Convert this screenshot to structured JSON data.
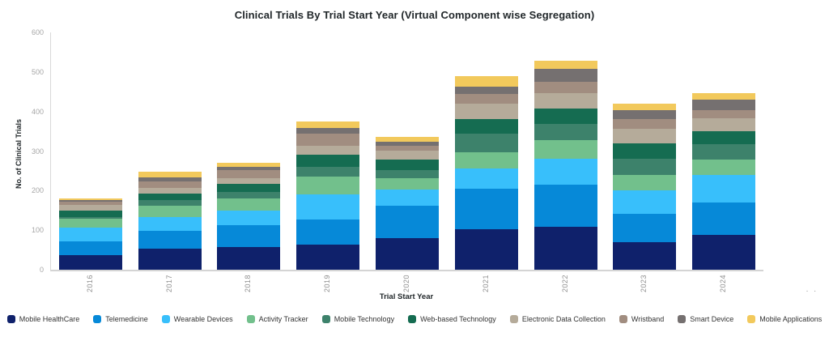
{
  "title": "Clinical Trials By Trial Start Year (Virtual Component wise Segregation)",
  "x_axis": {
    "title": "Trial Start Year"
  },
  "y_axis": {
    "title": "No. of Clinical Trials",
    "ticks": [
      0,
      100,
      200,
      300,
      400,
      500,
      600
    ]
  },
  "overflow_indicator": ". .",
  "chart_data": {
    "type": "bar",
    "stacked": true,
    "title": "Clinical Trials By Trial Start Year (Virtual Component wise Segregation)",
    "xlabel": "Trial Start Year",
    "ylabel": "No. of Clinical Trials",
    "ylim": [
      0,
      600
    ],
    "grid": false,
    "legend_position": "bottom",
    "categories": [
      "2016",
      "2017",
      "2018",
      "2019",
      "2020",
      "2021",
      "2022",
      "2023",
      "2024"
    ],
    "series": [
      {
        "name": "Mobile HealthCare",
        "color": "#0f216b",
        "values": [
          37,
          53,
          57,
          63,
          79,
          103,
          109,
          70,
          89
        ]
      },
      {
        "name": "Telemedicine",
        "color": "#0689d8",
        "values": [
          34,
          46,
          56,
          64,
          82,
          102,
          107,
          72,
          82
        ]
      },
      {
        "name": "Wearable Devices",
        "color": "#38bffb",
        "values": [
          36,
          35,
          36,
          64,
          42,
          51,
          65,
          59,
          68
        ]
      },
      {
        "name": "Activity Tracker",
        "color": "#72c08c",
        "values": [
          22,
          27,
          31,
          44,
          29,
          40,
          46,
          39,
          39
        ]
      },
      {
        "name": "Mobile Technology",
        "color": "#3d826b",
        "values": [
          5,
          16,
          17,
          25,
          19,
          48,
          42,
          41,
          40
        ]
      },
      {
        "name": "Web-based Technology",
        "color": "#156c51",
        "values": [
          15,
          16,
          20,
          30,
          27,
          38,
          38,
          38,
          33
        ]
      },
      {
        "name": "Electronic Data Collection",
        "color": "#b5ab9a",
        "values": [
          14,
          14,
          15,
          24,
          23,
          38,
          39,
          37,
          32
        ]
      },
      {
        "name": "Wristband",
        "color": "#a18d80",
        "values": [
          9,
          16,
          19,
          30,
          12,
          24,
          29,
          25,
          20
        ]
      },
      {
        "name": "Smart Device",
        "color": "#757070",
        "values": [
          5,
          10,
          10,
          14,
          10,
          18,
          33,
          23,
          27
        ]
      },
      {
        "name": "Mobile Applications",
        "color": "#f2c95c",
        "values": [
          4,
          15,
          10,
          17,
          12,
          27,
          20,
          16,
          16
        ]
      }
    ],
    "totals": [
      181,
      248,
      271,
      375,
      335,
      489,
      528,
      420,
      446
    ]
  }
}
